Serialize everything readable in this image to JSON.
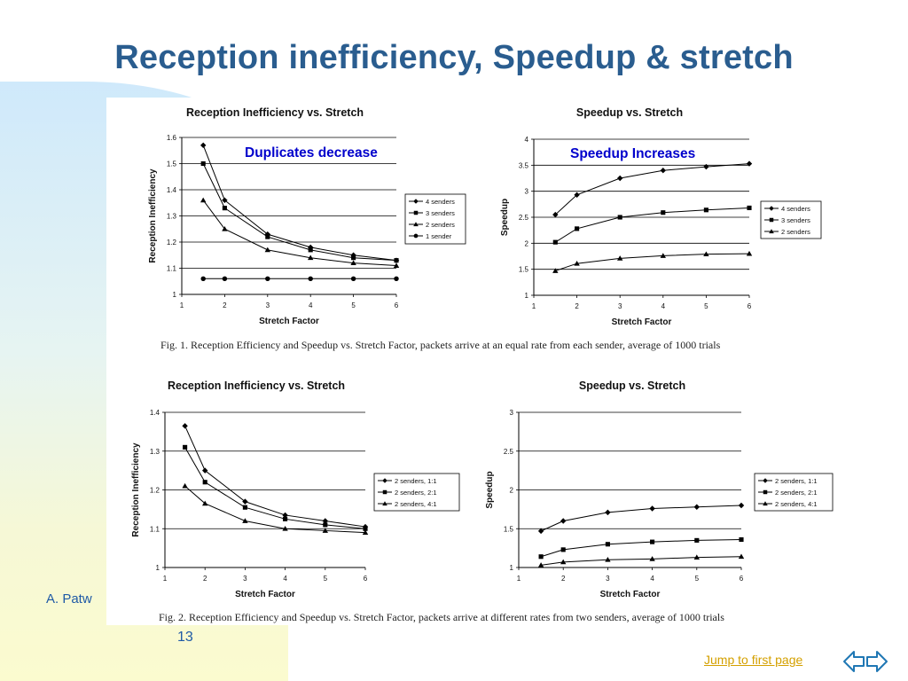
{
  "slide": {
    "title": "Reception inefficiency, Speedup & stretch",
    "author": "A. Patw",
    "page_number": "13",
    "jump_link": "Jump to first page",
    "nav_icon": "double-arrow-icon",
    "caption_fig1": "Fig. 1.  Reception Efficiency and Speedup vs. Stretch Factor, packets arrive at an equal rate from each sender, average of 1000 trials",
    "caption_fig2": "Fig. 2.  Reception Efficiency and Speedup vs. Stretch Factor, packets arrive at different rates from two senders, average of 1000 trials",
    "colors": {
      "title": "#2a5d8f",
      "annotation": "#0000cc",
      "link": "#d4a000"
    }
  },
  "chart_data": [
    {
      "type": "line",
      "title": "Reception Inefficiency vs. Stretch",
      "xlabel": "Stretch Factor",
      "ylabel": "Reception Inefficiency",
      "xlim": [
        1,
        6
      ],
      "ylim": [
        1,
        1.6
      ],
      "xticks": [
        1,
        2,
        3,
        4,
        5,
        6
      ],
      "yticks": [
        1,
        1.1,
        1.2,
        1.3,
        1.4,
        1.5,
        1.6
      ],
      "grid": true,
      "legend": "right",
      "annotation": "Duplicates decrease",
      "x": [
        1.5,
        2,
        3,
        4,
        5,
        6
      ],
      "series": [
        {
          "name": "4 senders",
          "marker": "diamond",
          "values": [
            1.57,
            1.36,
            1.23,
            1.18,
            1.15,
            1.13
          ]
        },
        {
          "name": "3 senders",
          "marker": "square",
          "values": [
            1.5,
            1.33,
            1.22,
            1.17,
            1.14,
            1.13
          ]
        },
        {
          "name": "2 senders",
          "marker": "triangle",
          "values": [
            1.36,
            1.25,
            1.17,
            1.14,
            1.12,
            1.11
          ]
        },
        {
          "name": "1 sender",
          "marker": "circle",
          "values": [
            1.06,
            1.06,
            1.06,
            1.06,
            1.06,
            1.06
          ]
        }
      ]
    },
    {
      "type": "line",
      "title": "Speedup vs. Stretch",
      "xlabel": "Stretch Factor",
      "ylabel": "Speedup",
      "xlim": [
        1,
        6
      ],
      "ylim": [
        1,
        4
      ],
      "xticks": [
        1,
        2,
        3,
        4,
        5,
        6
      ],
      "yticks": [
        1,
        1.5,
        2,
        2.5,
        3,
        3.5,
        4
      ],
      "grid": true,
      "legend": "right",
      "annotation": "Speedup Increases",
      "x": [
        1.5,
        2,
        3,
        4,
        5,
        6
      ],
      "series": [
        {
          "name": "4 senders",
          "marker": "diamond",
          "values": [
            2.55,
            2.93,
            3.25,
            3.4,
            3.47,
            3.53
          ]
        },
        {
          "name": "3 senders",
          "marker": "square",
          "values": [
            2.02,
            2.28,
            2.5,
            2.59,
            2.64,
            2.68
          ]
        },
        {
          "name": "2 senders",
          "marker": "triangle",
          "values": [
            1.47,
            1.61,
            1.71,
            1.76,
            1.79,
            1.8
          ]
        }
      ]
    },
    {
      "type": "line",
      "title": "Reception Inefficiency vs. Stretch",
      "xlabel": "Stretch Factor",
      "ylabel": "Reception Inefficiency",
      "xlim": [
        1,
        6
      ],
      "ylim": [
        1,
        1.4
      ],
      "xticks": [
        1,
        2,
        3,
        4,
        5,
        6
      ],
      "yticks": [
        1,
        1.1,
        1.2,
        1.3,
        1.4
      ],
      "grid": true,
      "legend": "right",
      "x": [
        1.5,
        2,
        3,
        4,
        5,
        6
      ],
      "series": [
        {
          "name": "2 senders, 1:1",
          "marker": "diamond",
          "values": [
            1.365,
            1.25,
            1.17,
            1.135,
            1.12,
            1.105
          ]
        },
        {
          "name": "2 senders, 2:1",
          "marker": "square",
          "values": [
            1.31,
            1.22,
            1.155,
            1.125,
            1.11,
            1.1
          ]
        },
        {
          "name": "2 senders, 4:1",
          "marker": "triangle",
          "values": [
            1.21,
            1.165,
            1.12,
            1.1,
            1.095,
            1.09
          ]
        }
      ]
    },
    {
      "type": "line",
      "title": "Speedup vs. Stretch",
      "xlabel": "Stretch Factor",
      "ylabel": "Speedup",
      "xlim": [
        1,
        6
      ],
      "ylim": [
        1,
        3
      ],
      "xticks": [
        1,
        2,
        3,
        4,
        5,
        6
      ],
      "yticks": [
        1,
        1.5,
        2,
        2.5,
        3
      ],
      "grid": true,
      "legend": "right",
      "x": [
        1.5,
        2,
        3,
        4,
        5,
        6
      ],
      "series": [
        {
          "name": "2 senders, 1:1",
          "marker": "diamond",
          "values": [
            1.47,
            1.6,
            1.71,
            1.76,
            1.78,
            1.8
          ]
        },
        {
          "name": "2 senders, 2:1",
          "marker": "square",
          "values": [
            1.14,
            1.23,
            1.3,
            1.33,
            1.35,
            1.36
          ]
        },
        {
          "name": "2 senders, 4:1",
          "marker": "triangle",
          "values": [
            1.03,
            1.07,
            1.1,
            1.11,
            1.13,
            1.14
          ]
        }
      ]
    }
  ]
}
